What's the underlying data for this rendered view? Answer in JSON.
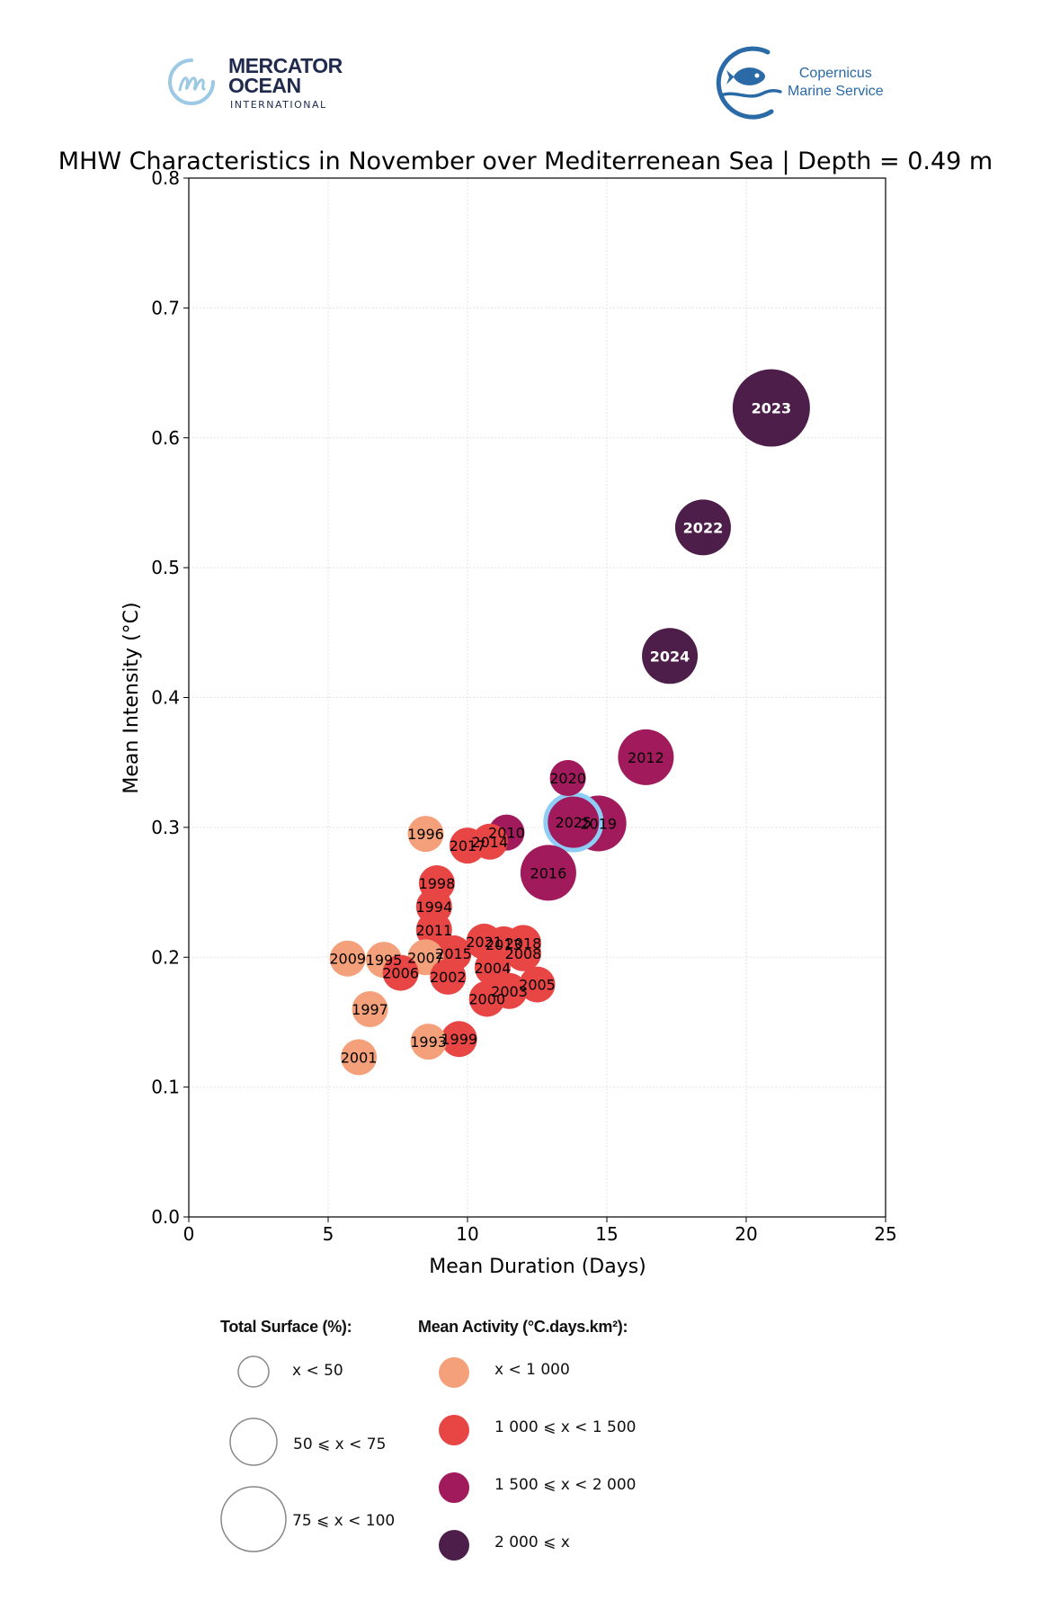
{
  "logos": {
    "left": {
      "name_line1": "MERCATOR",
      "name_line2": "OCEAN",
      "subtitle": "INTERNATIONAL"
    },
    "right": {
      "line1": "Copernicus",
      "line2": "Marine Service"
    }
  },
  "chart_data": {
    "type": "scatter",
    "title": "MHW Characteristics in November over Mediterrenean Sea | Depth = 0.49 m",
    "xlabel": "Mean Duration (Days)",
    "ylabel": "Mean Intensity (°C)",
    "xlim": [
      0,
      25
    ],
    "ylim": [
      0.0,
      0.8
    ],
    "xticks": [
      0,
      5,
      10,
      15,
      20,
      25
    ],
    "yticks": [
      0.0,
      0.1,
      0.2,
      0.3,
      0.4,
      0.5,
      0.6,
      0.7,
      0.8
    ],
    "xtick_labels": [
      "0",
      "5",
      "10",
      "15",
      "20",
      "25"
    ],
    "ytick_labels": [
      "0.0",
      "0.1",
      "0.2",
      "0.3",
      "0.4",
      "0.5",
      "0.6",
      "0.7",
      "0.8"
    ],
    "grid": true,
    "highlight_year": "2025",
    "highlight_color": "#8ecdf5",
    "activity_colors": {
      "lt1000": "#f4a07a",
      "1000to1500": "#e84545",
      "1500to2000": "#a11a5b",
      "ge2000": "#4e1e4b"
    },
    "points": [
      {
        "year": "2023",
        "x": 20.9,
        "y": 0.623,
        "surface": "75-100",
        "activity": "ge2000"
      },
      {
        "year": "2022",
        "x": 18.45,
        "y": 0.531,
        "surface": "50-75",
        "activity": "ge2000"
      },
      {
        "year": "2024",
        "x": 17.26,
        "y": 0.432,
        "surface": "50-75",
        "activity": "ge2000"
      },
      {
        "year": "2012",
        "x": 16.4,
        "y": 0.354,
        "surface": "50-75",
        "activity": "1500to2000"
      },
      {
        "year": "2020",
        "x": 13.6,
        "y": 0.338,
        "surface": "lt50",
        "activity": "1500to2000"
      },
      {
        "year": "2019",
        "x": 14.7,
        "y": 0.303,
        "surface": "50-75",
        "activity": "1500to2000"
      },
      {
        "year": "2025",
        "x": 13.8,
        "y": 0.304,
        "surface": "50-75",
        "activity": "1500to2000"
      },
      {
        "year": "2016",
        "x": 12.9,
        "y": 0.265,
        "surface": "50-75",
        "activity": "1500to2000"
      },
      {
        "year": "2010",
        "x": 11.4,
        "y": 0.296,
        "surface": "lt50",
        "activity": "1500to2000"
      },
      {
        "year": "2014",
        "x": 10.8,
        "y": 0.289,
        "surface": "lt50",
        "activity": "1000to1500"
      },
      {
        "year": "2017",
        "x": 10.0,
        "y": 0.286,
        "surface": "lt50",
        "activity": "1000to1500"
      },
      {
        "year": "1996",
        "x": 8.5,
        "y": 0.295,
        "surface": "lt50",
        "activity": "lt1000"
      },
      {
        "year": "1998",
        "x": 8.9,
        "y": 0.257,
        "surface": "lt50",
        "activity": "1000to1500"
      },
      {
        "year": "1994",
        "x": 8.8,
        "y": 0.239,
        "surface": "lt50",
        "activity": "1000to1500"
      },
      {
        "year": "2011",
        "x": 8.8,
        "y": 0.221,
        "surface": "lt50",
        "activity": "1000to1500"
      },
      {
        "year": "2021",
        "x": 10.6,
        "y": 0.212,
        "surface": "lt50",
        "activity": "1000to1500"
      },
      {
        "year": "2013",
        "x": 11.3,
        "y": 0.21,
        "surface": "lt50",
        "activity": "1000to1500"
      },
      {
        "year": "2018",
        "x": 12.0,
        "y": 0.211,
        "surface": "lt50",
        "activity": "1000to1500"
      },
      {
        "year": "2008",
        "x": 12.0,
        "y": 0.203,
        "surface": "lt50",
        "activity": "1000to1500"
      },
      {
        "year": "2015",
        "x": 9.5,
        "y": 0.203,
        "surface": "lt50",
        "activity": "1000to1500"
      },
      {
        "year": "2007",
        "x": 8.5,
        "y": 0.2,
        "surface": "lt50",
        "activity": "lt1000"
      },
      {
        "year": "2009",
        "x": 5.7,
        "y": 0.199,
        "surface": "lt50",
        "activity": "lt1000"
      },
      {
        "year": "1995",
        "x": 7.0,
        "y": 0.198,
        "surface": "lt50",
        "activity": "lt1000"
      },
      {
        "year": "2006",
        "x": 7.6,
        "y": 0.188,
        "surface": "lt50",
        "activity": "1000to1500"
      },
      {
        "year": "2002",
        "x": 9.3,
        "y": 0.185,
        "surface": "lt50",
        "activity": "1000to1500"
      },
      {
        "year": "2004",
        "x": 10.9,
        "y": 0.192,
        "surface": "lt50",
        "activity": "1000to1500"
      },
      {
        "year": "2005",
        "x": 12.5,
        "y": 0.179,
        "surface": "lt50",
        "activity": "1000to1500"
      },
      {
        "year": "2003",
        "x": 11.5,
        "y": 0.174,
        "surface": "lt50",
        "activity": "1000to1500"
      },
      {
        "year": "2000",
        "x": 10.7,
        "y": 0.168,
        "surface": "lt50",
        "activity": "1000to1500"
      },
      {
        "year": "1997",
        "x": 6.5,
        "y": 0.16,
        "surface": "lt50",
        "activity": "lt1000"
      },
      {
        "year": "1999",
        "x": 9.7,
        "y": 0.137,
        "surface": "lt50",
        "activity": "1000to1500"
      },
      {
        "year": "1993",
        "x": 8.6,
        "y": 0.135,
        "surface": "lt50",
        "activity": "lt1000"
      },
      {
        "year": "2001",
        "x": 6.1,
        "y": 0.123,
        "surface": "lt50",
        "activity": "lt1000"
      }
    ],
    "legend": {
      "surface_title": "Total Surface (%):",
      "surface_items": [
        {
          "key": "lt50",
          "label": "x < 50"
        },
        {
          "key": "50-75",
          "label": "50 ⩽ x < 75"
        },
        {
          "key": "75-100",
          "label": "75 ⩽ x < 100"
        }
      ],
      "activity_title": "Mean Activity (°C.days.km²):",
      "activity_items": [
        {
          "key": "lt1000",
          "label": "x < 1 000"
        },
        {
          "key": "1000to1500",
          "label": "1 000 ⩽ x < 1 500"
        },
        {
          "key": "1500to2000",
          "label": "1 500 ⩽ x < 2 000"
        },
        {
          "key": "ge2000",
          "label": "2 000 ⩽ x"
        }
      ],
      "placement": "bottom"
    }
  }
}
